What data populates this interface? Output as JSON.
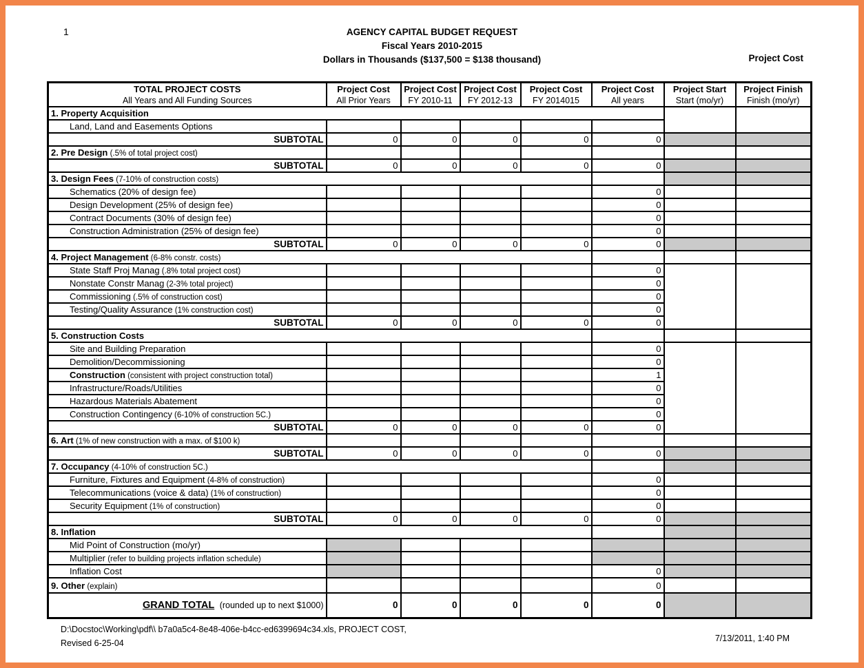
{
  "page": {
    "number": "1",
    "title1": "AGENCY CAPITAL BUDGET REQUEST",
    "title2": "Fiscal Years 2010-2015",
    "title3": "Dollars in Thousands ($137,500 = $138 thousand)",
    "corner_label": "Project Cost"
  },
  "colors": {
    "frame": "#f2854a",
    "cell_gray": "#cacaca"
  },
  "table": {
    "header": {
      "col1_line1": "TOTAL PROJECT COSTS",
      "col1_line2": "All Years and All Funding Sources",
      "cost_cols": [
        {
          "line1": "Project Cost",
          "line2": "All Prior Years"
        },
        {
          "line1": "Project Cost",
          "line2": "FY 2010-11"
        },
        {
          "line1": "Project Cost",
          "line2": "FY 2012-13"
        },
        {
          "line1": "Project Cost",
          "line2": "FY 2014015"
        },
        {
          "line1": "Project Cost",
          "line2": "All years"
        }
      ],
      "start_col": {
        "line1": "Project Start",
        "line2": "Start (mo/yr)"
      },
      "finish_col": {
        "line1": "Project Finish",
        "line2": "Finish (mo/yr)"
      }
    },
    "subtotal_label": "SUBTOTAL",
    "rows": [
      {
        "kind": "section",
        "label": "1. Property Acquisition",
        "span": 6,
        "cells": [],
        "sf": 2
      },
      {
        "kind": "item",
        "label": "Land, Land and Easements Options",
        "cells": [
          {},
          {},
          {},
          {},
          {}
        ],
        "sf": "none"
      },
      {
        "kind": "subtotal",
        "cells": [
          {
            "t": "0"
          },
          {
            "t": "0"
          },
          {
            "t": "0"
          },
          {
            "t": "0"
          },
          {
            "t": "0"
          }
        ],
        "sf": "g"
      },
      {
        "kind": "section",
        "label": "2. Pre Design",
        "note": "(.5% of total project cost)",
        "span": 1,
        "cells": [
          {},
          {},
          {},
          {},
          {}
        ],
        "sf": "w"
      },
      {
        "kind": "subtotal",
        "cells": [
          {
            "t": "0"
          },
          {
            "t": "0"
          },
          {
            "t": "0"
          },
          {
            "t": "0"
          },
          {
            "t": "0"
          }
        ],
        "sf": "g"
      },
      {
        "kind": "section",
        "label": "3. Design Fees",
        "note": "(7-10% of construction costs)",
        "span": 5,
        "cells": [
          {}
        ],
        "sf": "g"
      },
      {
        "kind": "item",
        "label": "Schematics (20% of design fee)",
        "cells": [
          {},
          {},
          {},
          {},
          {
            "t": "0"
          }
        ],
        "sf": "w"
      },
      {
        "kind": "item",
        "label": "Design Development (25% of design fee)",
        "cells": [
          {},
          {},
          {},
          {},
          {
            "t": "0"
          }
        ],
        "sf": "w"
      },
      {
        "kind": "item",
        "label": "Contract Documents (30% of design fee)",
        "cells": [
          {},
          {},
          {},
          {},
          {
            "t": "0"
          }
        ],
        "sf": "w"
      },
      {
        "kind": "item",
        "label": "Construction Administration (25% of design fee)",
        "cells": [
          {},
          {},
          {},
          {},
          {
            "t": "0"
          }
        ],
        "sf": "w"
      },
      {
        "kind": "subtotal",
        "cells": [
          {
            "t": "0"
          },
          {
            "t": "0"
          },
          {
            "t": "0"
          },
          {
            "t": "0"
          },
          {
            "t": "0"
          }
        ],
        "sf": "g"
      },
      {
        "kind": "section",
        "label": "4. Project Management",
        "note": "(6-8% constr. costs)",
        "span": 5,
        "cells": [
          {}
        ],
        "sf": "w"
      },
      {
        "kind": "item",
        "label": "State Staff Proj Manag",
        "note": "(.8% total project cost)",
        "cells": [
          {},
          {},
          {},
          {},
          {
            "t": "0"
          }
        ],
        "sf": 5
      },
      {
        "kind": "item",
        "label": "Nonstate Constr Manag",
        "note": "(2-3% total project)",
        "cells": [
          {},
          {},
          {},
          {},
          {
            "t": "0"
          }
        ],
        "sf": "none"
      },
      {
        "kind": "item",
        "label": "Commissioning",
        "note": "(.5% of construction cost)",
        "cells": [
          {},
          {},
          {},
          {},
          {
            "t": "0"
          }
        ],
        "sf": "none"
      },
      {
        "kind": "item",
        "label": "Testing/Quality Assurance",
        "note": "(1% construction cost)",
        "cells": [
          {},
          {},
          {},
          {},
          {
            "t": "0"
          }
        ],
        "sf": "none"
      },
      {
        "kind": "subtotal",
        "cells": [
          {
            "t": "0"
          },
          {
            "t": "0"
          },
          {
            "t": "0"
          },
          {
            "t": "0"
          },
          {
            "t": "0"
          }
        ],
        "sf": "none"
      },
      {
        "kind": "section",
        "label": "5. Construction Costs",
        "span": 5,
        "cells": [
          {}
        ],
        "sf": "w"
      },
      {
        "kind": "item",
        "label": "Site and Building Preparation",
        "cells": [
          {},
          {},
          {},
          {},
          {
            "t": "0"
          }
        ],
        "sf": 7
      },
      {
        "kind": "item",
        "label": "Demolition/Decommissioning",
        "cells": [
          {},
          {},
          {},
          {},
          {
            "t": "0"
          }
        ],
        "sf": "none"
      },
      {
        "kind": "item",
        "label": "Construction",
        "bold": 1,
        "note": "(consistent with project construction total)",
        "cells": [
          {},
          {},
          {},
          {},
          {
            "t": "1"
          }
        ],
        "sf": "none"
      },
      {
        "kind": "item",
        "label": "Infrastructure/Roads/Utilities",
        "cells": [
          {},
          {},
          {},
          {},
          {
            "t": "0"
          }
        ],
        "sf": "none"
      },
      {
        "kind": "item",
        "label": "Hazardous Materials Abatement",
        "cells": [
          {},
          {},
          {},
          {},
          {
            "t": "0"
          }
        ],
        "sf": "none"
      },
      {
        "kind": "item",
        "label": "Construction Contingency",
        "note": "(6-10% of construction 5C.)",
        "cells": [
          {},
          {},
          {},
          {},
          {
            "t": "0"
          }
        ],
        "sf": "none"
      },
      {
        "kind": "subtotal",
        "cells": [
          {
            "t": "0"
          },
          {
            "t": "0"
          },
          {
            "t": "0"
          },
          {
            "t": "0"
          },
          {
            "t": "0"
          }
        ],
        "sf": "none"
      },
      {
        "kind": "section",
        "label": "6. Art",
        "note": "(1% of new construction with a max. of $100 k)",
        "span": 1,
        "cells": [
          {},
          {},
          {},
          {},
          {}
        ],
        "sf": "w"
      },
      {
        "kind": "subtotal",
        "cells": [
          {
            "t": "0"
          },
          {
            "t": "0"
          },
          {
            "t": "0"
          },
          {
            "t": "0"
          },
          {
            "t": "0"
          }
        ],
        "sf": "g"
      },
      {
        "kind": "section",
        "label": "7. Occupancy",
        "note": "(4-10% of construction 5C.)",
        "span": 5,
        "cells": [
          {}
        ],
        "sf": "g"
      },
      {
        "kind": "item",
        "label": "Furniture, Fixtures and Equipment",
        "note": "(4-8% of construction)",
        "cells": [
          {},
          {},
          {},
          {},
          {
            "t": "0"
          }
        ],
        "sf": "w"
      },
      {
        "kind": "item",
        "label": "Telecommunications (voice & data)",
        "note": "(1% of construction)",
        "cells": [
          {},
          {},
          {},
          {},
          {
            "t": "0"
          }
        ],
        "sf": "w"
      },
      {
        "kind": "item",
        "label": "Security Equipment",
        "note": "(1% of construction)",
        "cells": [
          {},
          {},
          {},
          {},
          {
            "t": "0"
          }
        ],
        "sf": "w"
      },
      {
        "kind": "subtotal",
        "cells": [
          {
            "t": "0"
          },
          {
            "t": "0"
          },
          {
            "t": "0"
          },
          {
            "t": "0"
          },
          {
            "t": "0"
          }
        ],
        "sf": "g"
      },
      {
        "kind": "section",
        "label": "8. Inflation",
        "span": 5,
        "cells": [
          {}
        ],
        "sf": "g"
      },
      {
        "kind": "item",
        "label": "Mid Point of Construction (mo/yr)",
        "cells": [
          {
            "g": 1
          },
          {},
          {},
          {},
          {
            "g": 1
          }
        ],
        "sf": "g"
      },
      {
        "kind": "item",
        "label": "Multiplier",
        "note": "(refer to building projects inflation schedule)",
        "cells": [
          {
            "g": 1
          },
          {},
          {},
          {},
          {
            "g": 1
          }
        ],
        "sf": "g"
      },
      {
        "kind": "item",
        "label": "Inflation Cost",
        "cells": [
          {
            "g": 1
          },
          {},
          {},
          {},
          {
            "t": "0"
          }
        ],
        "sf": "g"
      },
      {
        "kind": "section",
        "label": "9. Other",
        "note": "(explain)",
        "span": 1,
        "cells": [
          {},
          {},
          {},
          {},
          {
            "t": "0"
          }
        ],
        "sf": "w",
        "h": 22
      },
      {
        "kind": "grand",
        "label": "GRAND TOTAL",
        "note": "(rounded up to next  $1000)",
        "cells": [
          {
            "t": "0",
            "b": 1
          },
          {
            "t": "0",
            "b": 1
          },
          {
            "t": "0",
            "b": 1
          },
          {
            "t": "0",
            "b": 1
          },
          {
            "t": "0",
            "b": 1
          }
        ],
        "sf": "g",
        "h": 36
      }
    ]
  },
  "footer": {
    "path_line": "D:\\Docstoc\\Working\\pdf\\\\ b7a0a5c4-8e48-406e-b4cc-ed6399694c34.xls,  PROJECT COST,",
    "revised_line": "Revised 6-25-04",
    "datetime": "7/13/2011, 1:40 PM"
  }
}
